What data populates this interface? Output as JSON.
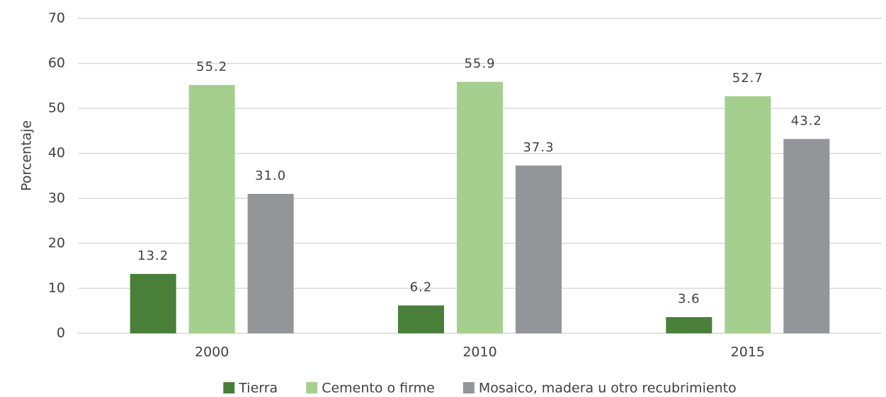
{
  "chart_data": {
    "type": "bar",
    "y_label": "Porcentaje",
    "categories": [
      "2000",
      "2010",
      "2015"
    ],
    "series": [
      {
        "name": "Tierra",
        "color": "#4a7f3a",
        "values": [
          13.2,
          6.2,
          3.6
        ],
        "value_labels": [
          "13.2",
          "6.2",
          "3.6"
        ]
      },
      {
        "name": "Cemento o firme",
        "color": "#a5cf8e",
        "values": [
          55.2,
          55.9,
          52.7
        ],
        "value_labels": [
          "55.2",
          "55.9",
          "52.7"
        ]
      },
      {
        "name": "Mosaico, madera u otro recubrimiento",
        "color": "#939598",
        "values": [
          31,
          37.3,
          43.2
        ],
        "value_labels": [
          "31.0",
          "37.3",
          "43.2"
        ]
      }
    ],
    "ylim": [
      0,
      70
    ],
    "yticks": [
      0,
      10,
      20,
      30,
      40,
      50,
      60,
      70
    ],
    "grid": true,
    "legend": "bottom"
  }
}
